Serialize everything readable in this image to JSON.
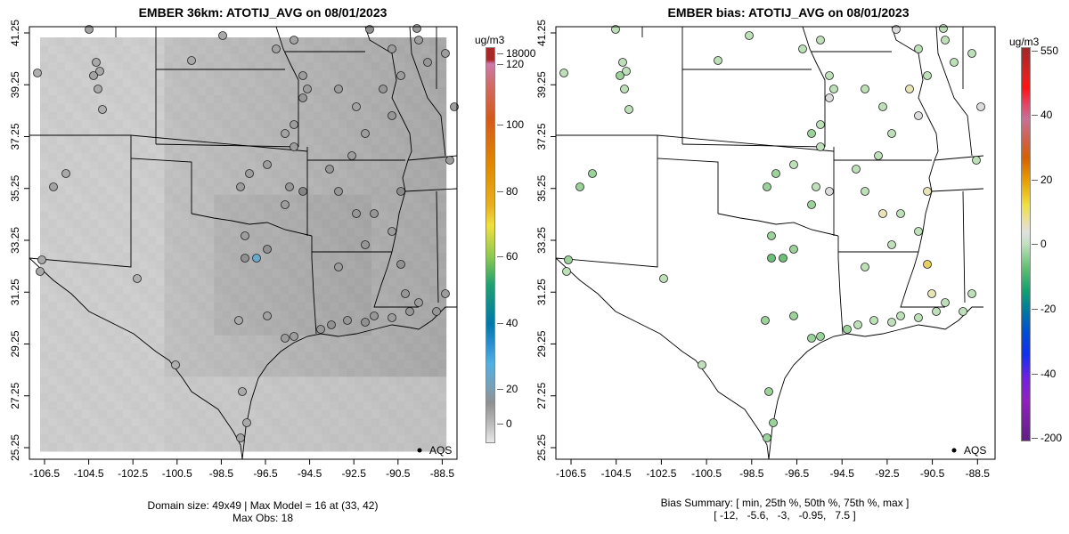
{
  "left": {
    "title": "EMBER 36km: ATOTIJ_AVG on 08/01/2023",
    "footer_line1": "Domain size: 49x49 | Max Model = 16 at (33, 42)",
    "footer_line2": "Max Obs: 18",
    "colorbar": {
      "unit": "ug/m3",
      "ticks": [
        "18000",
        "120",
        "100",
        "80",
        "60",
        "40",
        "20",
        "0"
      ]
    },
    "legend_label": "AQS"
  },
  "right": {
    "title": "EMBER bias: ATOTIJ_AVG on 08/01/2023",
    "footer_line1": "Bias Summary: [ min, 25th %, 50th %, 75th %, max ]",
    "footer_line2": "[ -12,   -5.6,   -3,   -0.95,   7.5 ]",
    "colorbar": {
      "unit": "ug/m3",
      "ticks": [
        "550",
        "40",
        "20",
        "0",
        "-20",
        "-40",
        "-200"
      ]
    },
    "legend_label": "AQS"
  },
  "axes": {
    "x_ticks": [
      "-106.5",
      "-104.5",
      "-102.5",
      "-100.5",
      "-98.5",
      "-96.5",
      "-94.5",
      "-92.5",
      "-90.5",
      "-88.5"
    ],
    "y_ticks": [
      "41.25",
      "39.25",
      "37.25",
      "35.25",
      "33.25",
      "31.25",
      "29.25",
      "27.25",
      "25.25"
    ]
  },
  "stations": [
    {
      "obs": 7,
      "bias": -3
    },
    {
      "obs": 6,
      "bias": -4
    },
    {
      "obs": 6,
      "bias": -4
    },
    {
      "obs": 7,
      "bias": -5
    },
    {
      "obs": 6,
      "bias": -4
    },
    {
      "obs": 5,
      "bias": -3
    },
    {
      "obs": 5,
      "bias": -4
    },
    {
      "obs": 6,
      "bias": -5
    },
    {
      "obs": 7,
      "bias": -6
    },
    {
      "obs": 6,
      "bias": -5
    },
    {
      "obs": 6,
      "bias": -4
    },
    {
      "obs": 5,
      "bias": -3
    },
    {
      "obs": 5,
      "bias": -4
    },
    {
      "obs": 6,
      "bias": -6
    },
    {
      "obs": 7,
      "bias": -6
    },
    {
      "obs": 6,
      "bias": -6
    },
    {
      "obs": 6,
      "bias": -5
    },
    {
      "obs": 7,
      "bias": -5
    },
    {
      "obs": 8,
      "bias": -6
    },
    {
      "obs": 8,
      "bias": -7
    },
    {
      "obs": 9,
      "bias": -5
    },
    {
      "obs": 10,
      "bias": -4
    },
    {
      "obs": 9,
      "bias": -3
    },
    {
      "obs": 10,
      "bias": -2
    },
    {
      "obs": 9,
      "bias": -3
    },
    {
      "obs": 8,
      "bias": -2
    },
    {
      "obs": 9,
      "bias": -4
    },
    {
      "obs": 8,
      "bias": -3
    },
    {
      "obs": 9,
      "bias": -2
    },
    {
      "obs": 10,
      "bias": -8
    },
    {
      "obs": 18,
      "bias": -12
    },
    {
      "obs": 10,
      "bias": -6
    },
    {
      "obs": 8,
      "bias": -5
    },
    {
      "obs": 8,
      "bias": -5
    },
    {
      "obs": 12,
      "bias": 0
    },
    {
      "obs": 9,
      "bias": -4
    },
    {
      "obs": 8,
      "bias": -6
    },
    {
      "obs": 8,
      "bias": -5
    },
    {
      "obs": 8,
      "bias": -4
    },
    {
      "obs": 8,
      "bias": -4
    },
    {
      "obs": 7,
      "bias": -6
    },
    {
      "obs": 8,
      "bias": -3
    },
    {
      "obs": 6,
      "bias": -4
    },
    {
      "obs": 6,
      "bias": -3
    },
    {
      "obs": 7,
      "bias": -2
    },
    {
      "obs": 7,
      "bias": -3
    },
    {
      "obs": 9,
      "bias": -1
    },
    {
      "obs": 8,
      "bias": -2
    },
    {
      "obs": 8,
      "bias": -2
    },
    {
      "obs": 8,
      "bias": -3
    },
    {
      "obs": 7,
      "bias": -4
    },
    {
      "obs": 8,
      "bias": -2
    },
    {
      "obs": 8,
      "bias": -3
    },
    {
      "obs": 9,
      "bias": -1
    },
    {
      "obs": 9,
      "bias": 1
    },
    {
      "obs": 8,
      "bias": -2
    },
    {
      "obs": 8,
      "bias": -3
    },
    {
      "obs": 9,
      "bias": -2
    },
    {
      "obs": 8,
      "bias": -3
    },
    {
      "obs": 8,
      "bias": -1
    },
    {
      "obs": 8,
      "bias": -2
    },
    {
      "obs": 11,
      "bias": 2
    },
    {
      "obs": 9,
      "bias": 3
    },
    {
      "obs": 9,
      "bias": -2
    },
    {
      "obs": 8,
      "bias": -3
    },
    {
      "obs": 9,
      "bias": -2
    },
    {
      "obs": 8,
      "bias": -4
    },
    {
      "obs": 10,
      "bias": 7.5
    },
    {
      "obs": 9,
      "bias": 5
    },
    {
      "obs": 8,
      "bias": -2
    },
    {
      "obs": 9,
      "bias": -3
    },
    {
      "obs": 9,
      "bias": -2
    },
    {
      "obs": 10,
      "bias": 0
    },
    {
      "obs": 8,
      "bias": -3
    },
    {
      "obs": 8,
      "bias": -4
    }
  ]
}
